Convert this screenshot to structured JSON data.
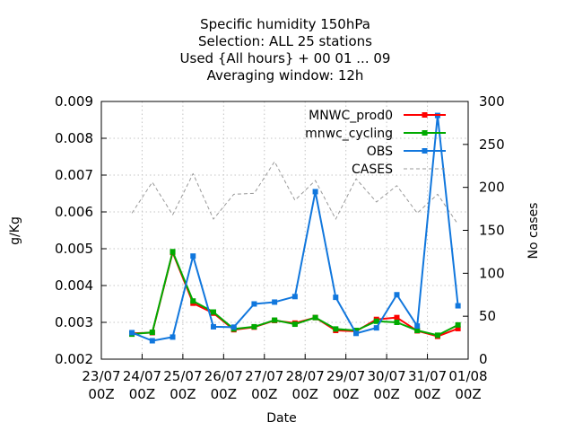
{
  "chart_data": {
    "type": "line",
    "title_lines": [
      "Specific humidity 150hPa",
      "Selection: ALL     25 stations",
      "Used {All hours} + 00 01 ... 09",
      "Averaging window: 12h"
    ],
    "xlabel": "Date",
    "ylabel": "g/Kg",
    "y2label": "No cases",
    "xlim": [
      0,
      9
    ],
    "ylim": [
      0.002,
      0.009
    ],
    "y2lim": [
      0,
      300
    ],
    "x_ticks": [
      {
        "value": 0,
        "line1": "23/07",
        "line2": "00Z"
      },
      {
        "value": 1,
        "line1": "24/07",
        "line2": "00Z"
      },
      {
        "value": 2,
        "line1": "25/07",
        "line2": "00Z"
      },
      {
        "value": 3,
        "line1": "26/07",
        "line2": "00Z"
      },
      {
        "value": 4,
        "line1": "27/07",
        "line2": "00Z"
      },
      {
        "value": 5,
        "line1": "28/07",
        "line2": "00Z"
      },
      {
        "value": 6,
        "line1": "29/07",
        "line2": "00Z"
      },
      {
        "value": 7,
        "line1": "30/07",
        "line2": "00Z"
      },
      {
        "value": 8,
        "line1": "31/07",
        "line2": "00Z"
      },
      {
        "value": 9,
        "line1": "01/08",
        "line2": "00Z"
      }
    ],
    "y_ticks": [
      "0.002",
      "0.003",
      "0.004",
      "0.005",
      "0.006",
      "0.007",
      "0.008",
      "0.009"
    ],
    "y2_ticks": [
      "0",
      "50",
      "100",
      "150",
      "200",
      "250",
      "300"
    ],
    "grid": true,
    "legend_position": "top-right",
    "x": [
      0.75,
      1.25,
      1.75,
      2.25,
      2.75,
      3.25,
      3.75,
      4.25,
      4.75,
      5.25,
      5.75,
      6.25,
      6.75,
      7.25,
      7.75,
      8.25,
      8.75
    ],
    "series": [
      {
        "name": "MNWC_prod0",
        "color": "#ff0000",
        "axis": "y",
        "values": [
          0.0027,
          0.00272,
          0.0049,
          0.00352,
          0.00325,
          0.0028,
          0.00287,
          0.00305,
          0.00298,
          0.00313,
          0.00278,
          0.00276,
          0.00308,
          0.00313,
          0.00277,
          0.00262,
          0.00283
        ]
      },
      {
        "name": "mnwc_cycling",
        "color": "#00aa00",
        "axis": "y",
        "values": [
          0.00268,
          0.00273,
          0.00492,
          0.00358,
          0.00328,
          0.00282,
          0.00288,
          0.00306,
          0.00295,
          0.00313,
          0.00282,
          0.00278,
          0.00303,
          0.003,
          0.00278,
          0.00265,
          0.00293
        ]
      },
      {
        "name": "OBS",
        "color": "#1177dd",
        "axis": "y",
        "values": [
          0.00272,
          0.0025,
          0.0026,
          0.0048,
          0.00288,
          0.00287,
          0.0035,
          0.00355,
          0.0037,
          0.00655,
          0.00368,
          0.0027,
          0.00285,
          0.00375,
          0.0029,
          0.00862,
          0.00345
        ]
      },
      {
        "name": "CASES",
        "color": "#999999",
        "axis": "y2",
        "dashed": true,
        "values": [
          170,
          206,
          168,
          216,
          163,
          192,
          193,
          230,
          185,
          208,
          163,
          210,
          183,
          202,
          170,
          192,
          157
        ]
      }
    ]
  }
}
